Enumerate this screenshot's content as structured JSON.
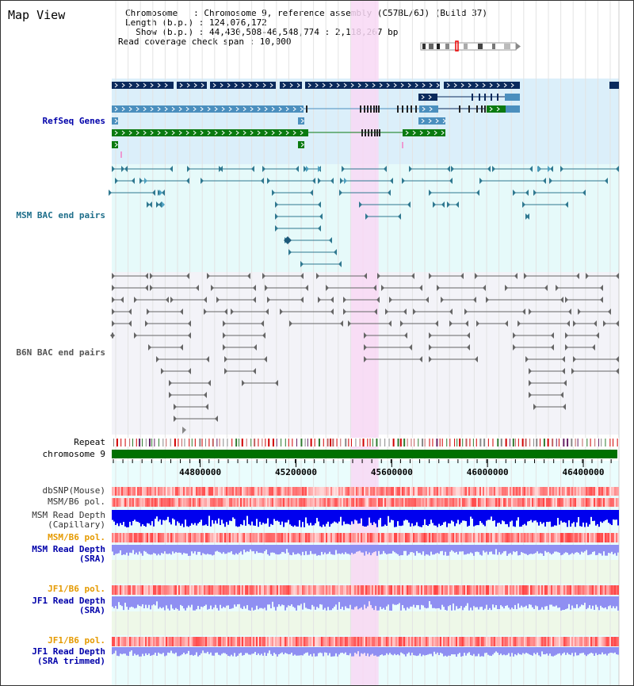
{
  "title": "Map View",
  "header": {
    "chromosome_line": "Chromosome   : Chromosome 9, reference assembly (C57BL/6J) (Build 37)",
    "length_line": "Length (b.p.) : 124,076,172",
    "show_line": "  Show (b.p.) : 44,430,508-46,548,774 : 2,118,267 bp",
    "coverage_line": "Read coverage check span : 10,000"
  },
  "tracks": {
    "refseq": "RefSeq Genes",
    "msm_bac": "MSM BAC end pairs",
    "b6n_bac": "B6N BAC end pairs",
    "repeat": "Repeat",
    "chromosome": "chromosome 9",
    "dbsnp": "dbSNP(Mouse)",
    "msm_b6_pol": "MSM/B6 pol.",
    "msm_depth_cap_1": "MSM Read Depth",
    "msm_depth_cap_2": "(Capillary)",
    "msm_b6_pol_2": "MSM/B6 pol.",
    "msm_depth_sra_1": "MSM Read Depth",
    "msm_depth_sra_2": "(SRA)",
    "jf1_pol": "JF1/B6 pol.",
    "jf1_depth_1": "JF1 Read Depth",
    "jf1_depth_2": "(SRA)",
    "jf1_pol_2": "JF1/B6 pol.",
    "jf1_trim_1": "JF1 Read Depth",
    "jf1_trim_2": "(SRA trimmed)"
  },
  "axis": {
    "tick_labels": [
      "44800000",
      "45200000",
      "45600000",
      "46000000",
      "46400000"
    ],
    "tick_values": [
      44800000,
      45200000,
      45600000,
      46000000,
      46400000
    ],
    "start_bp": 44430508,
    "end_bp": 46548774,
    "highlight_start_bp": 45430000,
    "highlight_end_bp": 45545000
  },
  "colors": {
    "refseq_bg": "#dbeffa",
    "msm_bg": "#e6fafa",
    "b6n_bg": "#f3f3f8",
    "highlight": "#f8d8f4",
    "gene_dark": "#0b2a5c",
    "gene_mid": "#4b8fbe",
    "gene_green": "#0a7a10",
    "msm_pair": "#2f7890",
    "b6n_pair": "#666666",
    "chrom_bar": "#007000",
    "depth_blue": "#0000ee",
    "depth_light": "#8f8ff2",
    "pol_red": "#f07070"
  }
}
